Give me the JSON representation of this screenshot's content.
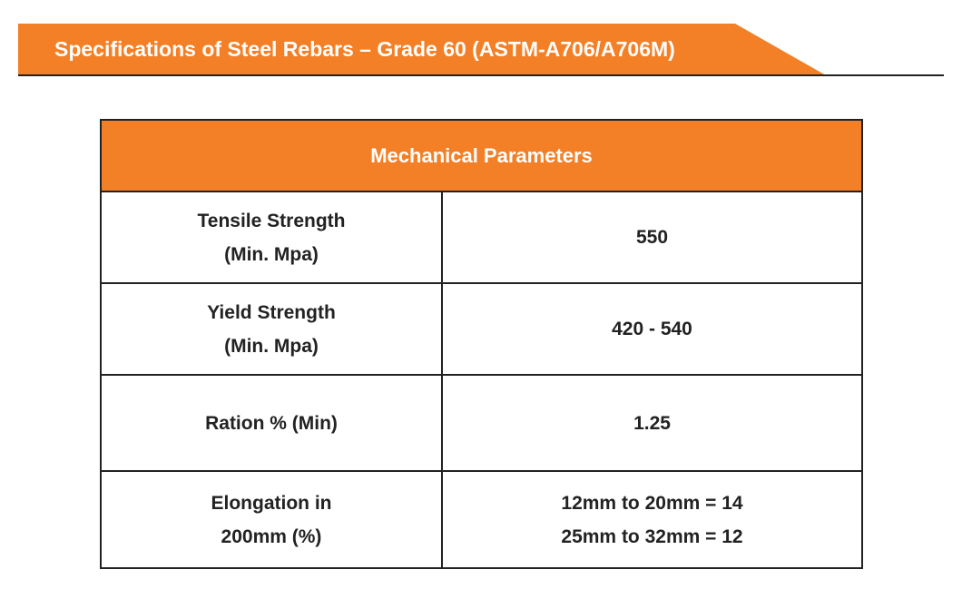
{
  "header": {
    "title": "Specifications of Steel Rebars – Grade 60 (ASTM-A706/A706M)"
  },
  "table": {
    "heading": "Mechanical Parameters",
    "rows": [
      {
        "label": [
          "Tensile Strength",
          "(Min. Mpa)"
        ],
        "value": [
          "550"
        ]
      },
      {
        "label": [
          "Yield Strength",
          "(Min. Mpa)"
        ],
        "value": [
          "420 - 540"
        ]
      },
      {
        "label": [
          "Ration % (Min)"
        ],
        "value": [
          "1.25"
        ]
      },
      {
        "label": [
          "Elongation in",
          "200mm (%)"
        ],
        "value": [
          "12mm to 20mm = 14",
          "25mm to 32mm = 12"
        ]
      }
    ]
  }
}
